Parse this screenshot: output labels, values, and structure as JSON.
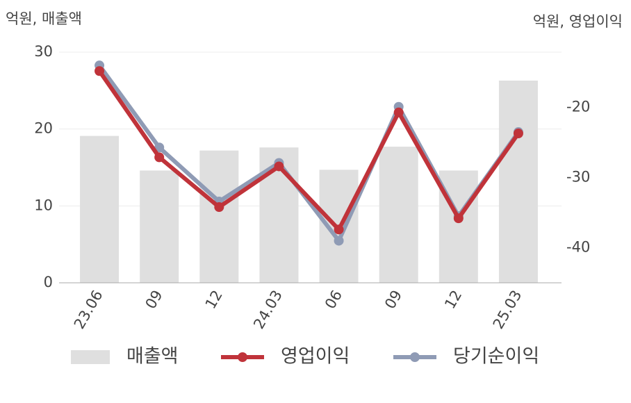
{
  "chart_data": {
    "type": "bar-line",
    "y_label": "억원, 매출액",
    "y2_label": "억원, 영업이익",
    "categories": [
      "23.06",
      "09",
      "12",
      "24.03",
      "06",
      "09",
      "12",
      "25.03"
    ],
    "series": [
      {
        "name": "매출액",
        "type": "bar",
        "color": "#dfdfdf",
        "values": [
          19.1,
          14.6,
          17.2,
          17.6,
          14.7,
          17.7,
          14.6,
          26.3
        ]
      },
      {
        "name": "영업이익",
        "type": "line",
        "axis": "y2",
        "color": "#c0333a",
        "values": [
          -14.8,
          -27.1,
          -34.2,
          -28.4,
          -37.4,
          -20.7,
          -35.8,
          -23.7
        ]
      },
      {
        "name": "당기순이익",
        "type": "line",
        "axis": "y2",
        "color": "#8f9bb5",
        "values": [
          -14.0,
          -25.7,
          -33.4,
          -27.9,
          -39.0,
          -19.9,
          -35.5,
          -23.5
        ]
      }
    ],
    "ylim": [
      0,
      30
    ],
    "yticks": [
      0,
      10,
      20,
      30
    ],
    "y2lim": [
      -45,
      -12.1
    ],
    "y2ticks": [
      -40,
      -30,
      -20
    ],
    "grid": true,
    "legend": "bottom"
  }
}
